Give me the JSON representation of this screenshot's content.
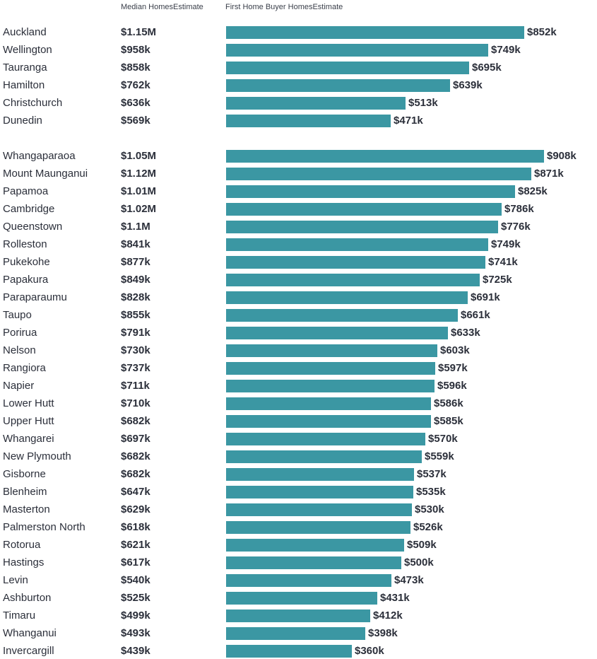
{
  "header": {
    "median_label": "Median HomesEstimate",
    "first_home_label": "First Home Buyer HomesEstimate"
  },
  "colors": {
    "bar": "#3b97a3",
    "text": "#2b2f3a"
  },
  "chart_data": {
    "type": "bar",
    "orientation": "horizontal",
    "xlim": [
      0,
      1000
    ],
    "groups": [
      {
        "rows": [
          {
            "city": "Auckland",
            "median": "$1.15M",
            "first_home": 852,
            "label": "$852k"
          },
          {
            "city": "Wellington",
            "median": "$958k",
            "first_home": 749,
            "label": "$749k"
          },
          {
            "city": "Tauranga",
            "median": "$858k",
            "first_home": 695,
            "label": "$695k"
          },
          {
            "city": "Hamilton",
            "median": "$762k",
            "first_home": 639,
            "label": "$639k"
          },
          {
            "city": "Christchurch",
            "median": "$636k",
            "first_home": 513,
            "label": "$513k"
          },
          {
            "city": "Dunedin",
            "median": "$569k",
            "first_home": 471,
            "label": "$471k"
          }
        ]
      },
      {
        "rows": [
          {
            "city": "Whangaparaoa",
            "median": "$1.05M",
            "first_home": 908,
            "label": "$908k"
          },
          {
            "city": "Mount Maunganui",
            "median": "$1.12M",
            "first_home": 871,
            "label": "$871k"
          },
          {
            "city": "Papamoa",
            "median": "$1.01M",
            "first_home": 825,
            "label": "$825k"
          },
          {
            "city": "Cambridge",
            "median": "$1.02M",
            "first_home": 786,
            "label": "$786k"
          },
          {
            "city": "Queenstown",
            "median": "$1.1M",
            "first_home": 776,
            "label": "$776k"
          },
          {
            "city": "Rolleston",
            "median": "$841k",
            "first_home": 749,
            "label": "$749k"
          },
          {
            "city": "Pukekohe",
            "median": "$877k",
            "first_home": 741,
            "label": "$741k"
          },
          {
            "city": "Papakura",
            "median": "$849k",
            "first_home": 725,
            "label": "$725k"
          },
          {
            "city": "Paraparaumu",
            "median": "$828k",
            "first_home": 691,
            "label": "$691k"
          },
          {
            "city": "Taupo",
            "median": "$855k",
            "first_home": 661,
            "label": "$661k"
          },
          {
            "city": "Porirua",
            "median": "$791k",
            "first_home": 633,
            "label": "$633k"
          },
          {
            "city": "Nelson",
            "median": "$730k",
            "first_home": 603,
            "label": "$603k"
          },
          {
            "city": "Rangiora",
            "median": "$737k",
            "first_home": 597,
            "label": "$597k"
          },
          {
            "city": "Napier",
            "median": "$711k",
            "first_home": 596,
            "label": "$596k"
          },
          {
            "city": "Lower Hutt",
            "median": "$710k",
            "first_home": 586,
            "label": "$586k"
          },
          {
            "city": "Upper Hutt",
            "median": "$682k",
            "first_home": 585,
            "label": "$585k"
          },
          {
            "city": "Whangarei",
            "median": "$697k",
            "first_home": 570,
            "label": "$570k"
          },
          {
            "city": "New Plymouth",
            "median": "$682k",
            "first_home": 559,
            "label": "$559k"
          },
          {
            "city": "Gisborne",
            "median": "$682k",
            "first_home": 537,
            "label": "$537k"
          },
          {
            "city": "Blenheim",
            "median": "$647k",
            "first_home": 535,
            "label": "$535k"
          },
          {
            "city": "Masterton",
            "median": "$629k",
            "first_home": 530,
            "label": "$530k"
          },
          {
            "city": "Palmerston North",
            "median": "$618k",
            "first_home": 526,
            "label": "$526k"
          },
          {
            "city": "Rotorua",
            "median": "$621k",
            "first_home": 509,
            "label": "$509k"
          },
          {
            "city": "Hastings",
            "median": "$617k",
            "first_home": 500,
            "label": "$500k"
          },
          {
            "city": "Levin",
            "median": "$540k",
            "first_home": 473,
            "label": "$473k"
          },
          {
            "city": "Ashburton",
            "median": "$525k",
            "first_home": 431,
            "label": "$431k"
          },
          {
            "city": "Timaru",
            "median": "$499k",
            "first_home": 412,
            "label": "$412k"
          },
          {
            "city": "Whanganui",
            "median": "$493k",
            "first_home": 398,
            "label": "$398k"
          },
          {
            "city": "Invercargill",
            "median": "$439k",
            "first_home": 360,
            "label": "$360k"
          }
        ]
      }
    ]
  }
}
